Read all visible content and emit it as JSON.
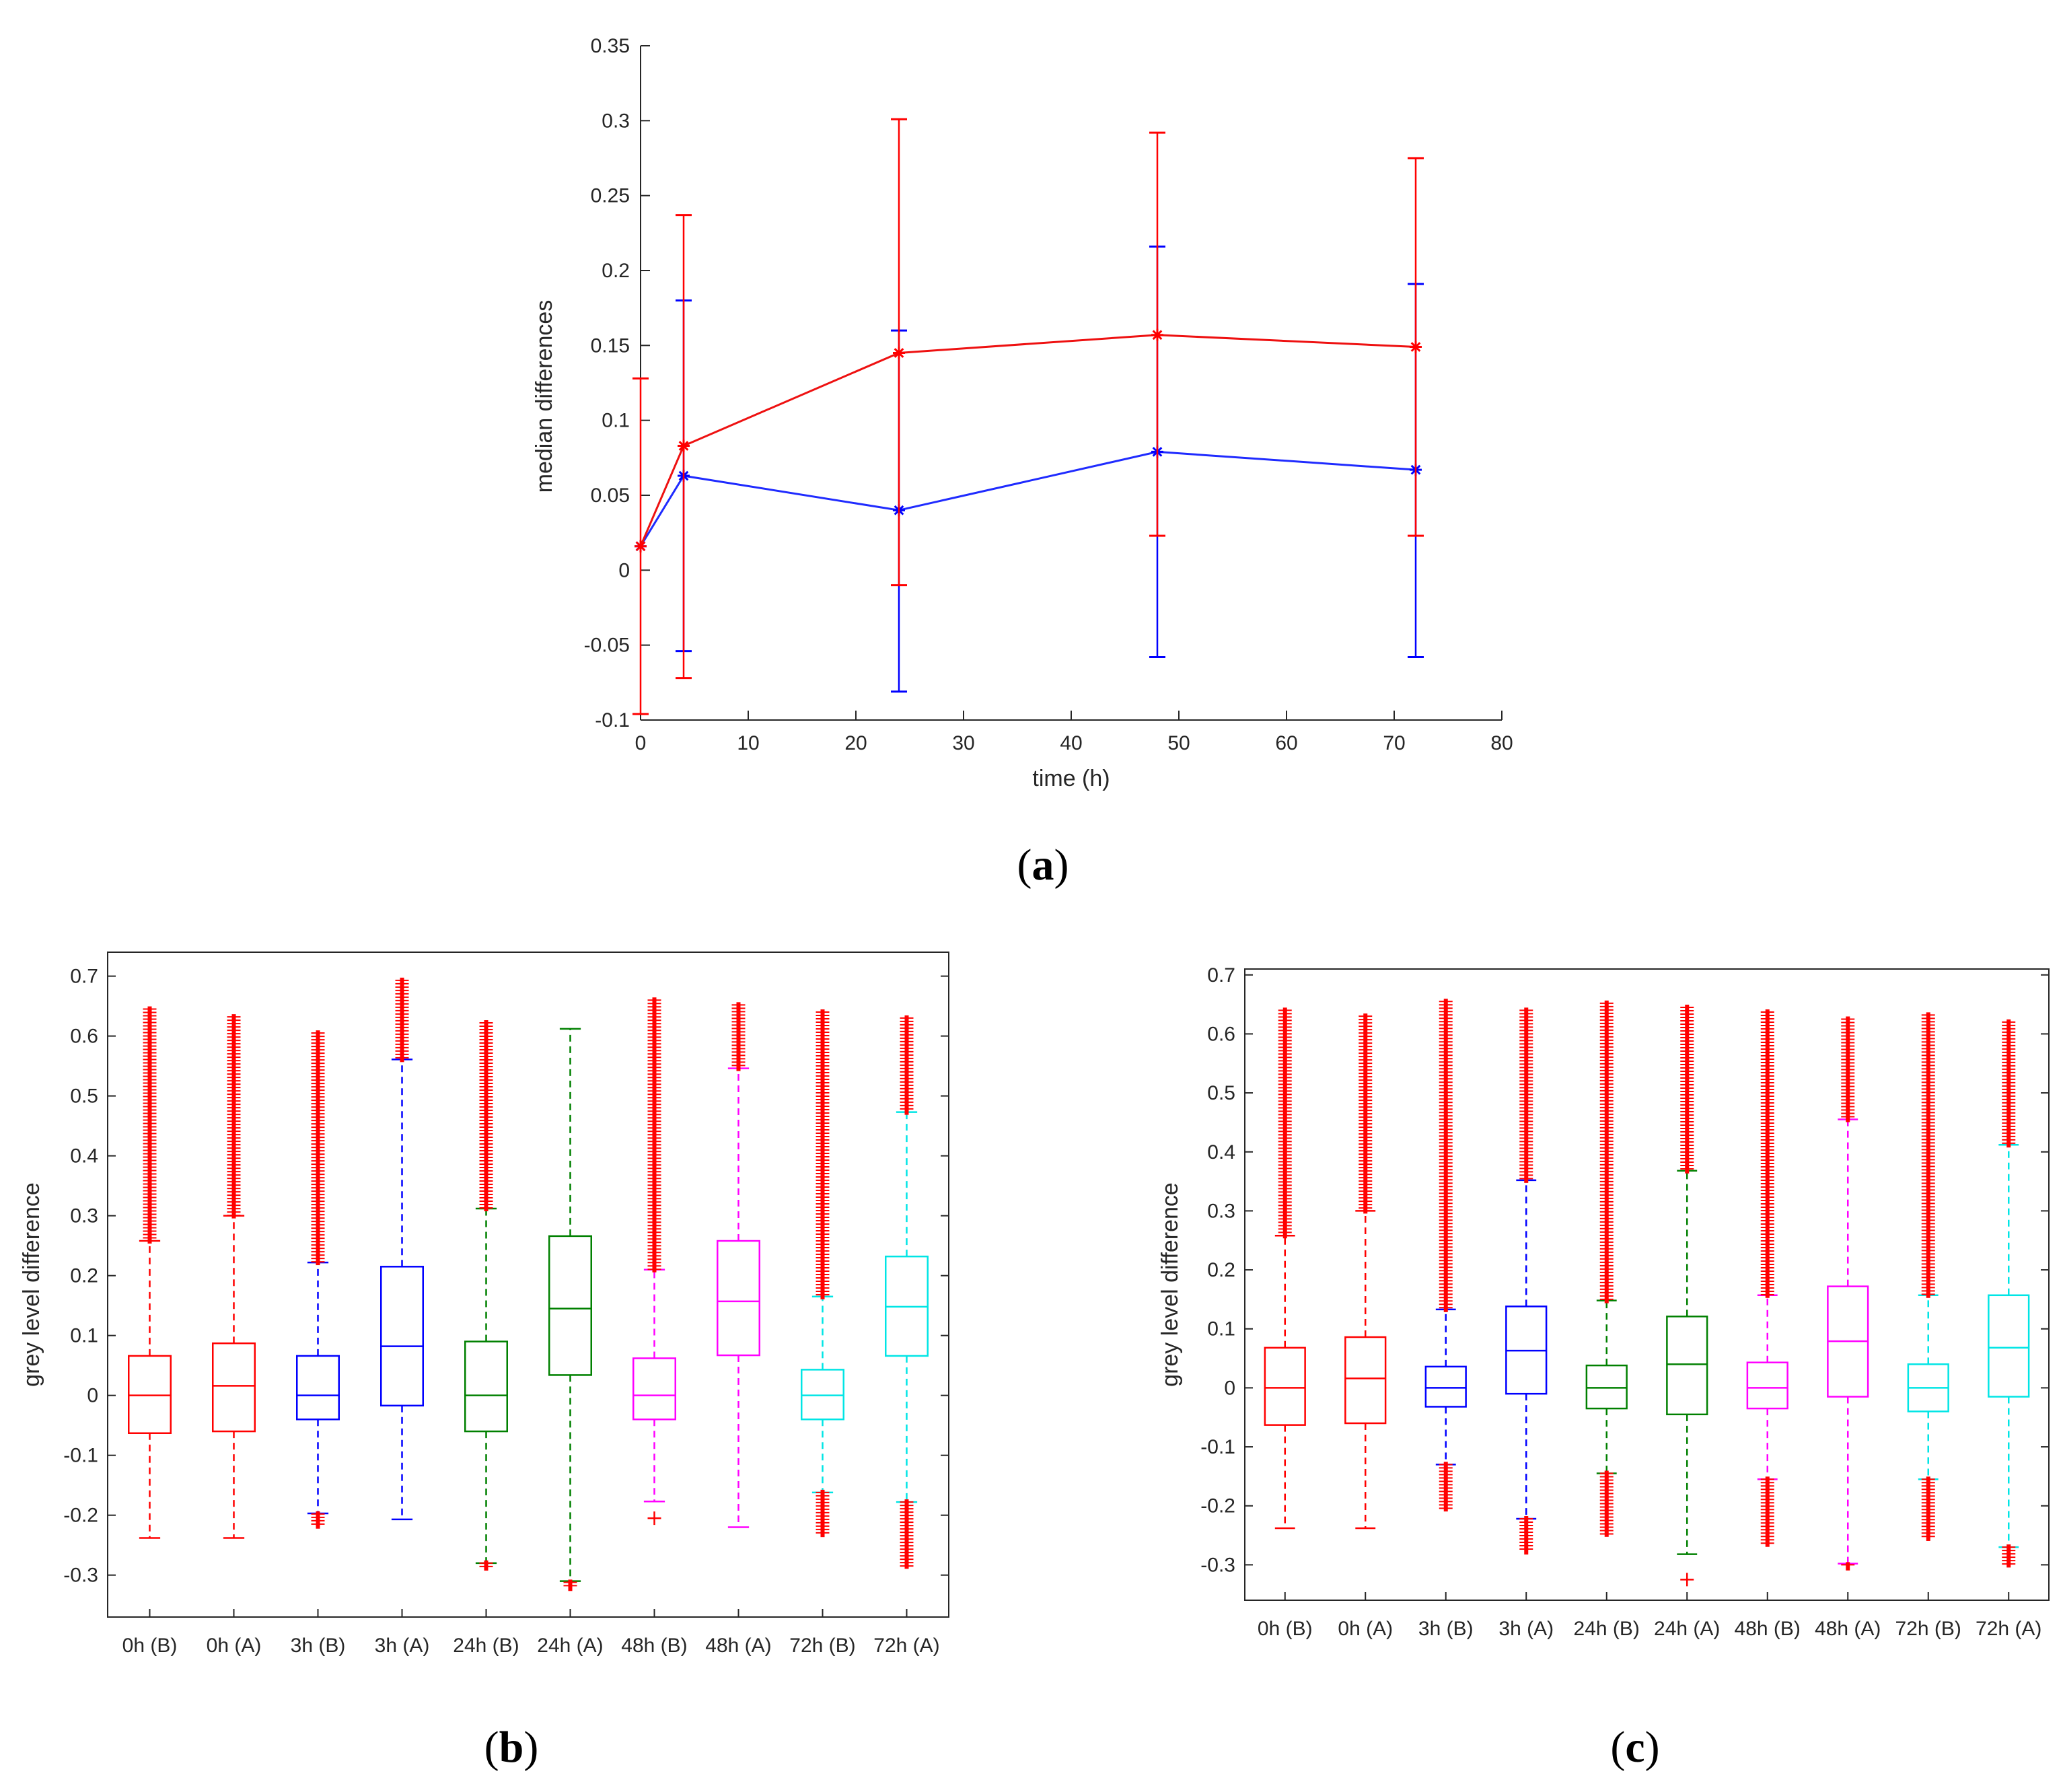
{
  "colors": {
    "red": "#ff0000",
    "blue": "#0000ff",
    "green": "#008000",
    "magenta": "#ff00ff",
    "cyan": "#00e5e5",
    "axis": "#262626",
    "neutral_line": "#1f2bff",
    "treated_line": "#ee1111"
  },
  "chart_data": [
    {
      "panel": "a",
      "caption": {
        "open": "(",
        "letter": "a",
        "close": ")"
      },
      "type": "line",
      "xlabel": "time (h)",
      "ylabel": "median differences",
      "xlim": [
        0,
        80
      ],
      "ylim": [
        -0.1,
        0.35
      ],
      "xticks": [
        0,
        10,
        20,
        30,
        40,
        50,
        60,
        70,
        80
      ],
      "xtick_labels": [
        "0",
        "10",
        "20",
        "30",
        "40",
        "50",
        "60",
        "70",
        "80"
      ],
      "yticks": [
        -0.1,
        -0.05,
        0,
        0.05,
        0.1,
        0.15,
        0.2,
        0.25,
        0.3,
        0.35
      ],
      "ytick_labels": [
        "-0.1",
        "-0.05",
        "0",
        "0.05",
        "0.1",
        "0.15",
        "0.2",
        "0.25",
        "0.3",
        "0.35"
      ],
      "series": [
        {
          "color": "blue",
          "marker": "asterisk",
          "x": [
            0,
            4,
            24,
            48,
            72
          ],
          "y": [
            0.016,
            0.063,
            0.04,
            0.079,
            0.067
          ],
          "err_low": [
            0.016,
            -0.054,
            -0.081,
            -0.058,
            -0.058
          ],
          "err_high": [
            0.016,
            0.18,
            0.16,
            0.216,
            0.191
          ]
        },
        {
          "color": "red",
          "marker": "asterisk",
          "x": [
            0,
            4,
            24,
            48,
            72
          ],
          "y": [
            0.016,
            0.083,
            0.145,
            0.157,
            0.149
          ],
          "err_low": [
            -0.096,
            -0.072,
            -0.01,
            0.023,
            0.023
          ],
          "err_high": [
            0.128,
            0.237,
            0.301,
            0.292,
            0.275
          ]
        }
      ]
    },
    {
      "panel": "b",
      "caption": {
        "open": "(",
        "letter": "b",
        "close": ")"
      },
      "type": "box",
      "ylabel": "grey level difference",
      "ylim": [
        -0.37,
        0.74
      ],
      "yticks": [
        -0.3,
        -0.2,
        -0.1,
        0,
        0.1,
        0.2,
        0.3,
        0.4,
        0.5,
        0.6,
        0.7
      ],
      "ytick_labels": [
        "-0.3",
        "-0.2",
        "-0.1",
        "0",
        "0.1",
        "0.2",
        "0.3",
        "0.4",
        "0.5",
        "0.6",
        "0.7"
      ],
      "categories": [
        "0h (B)",
        "0h (A)",
        "3h (B)",
        "3h (A)",
        "24h (B)",
        "24h (A)",
        "48h (B)",
        "48h (A)",
        "72h (B)",
        "72h (A)"
      ],
      "boxes": [
        {
          "color": "red",
          "q1": -0.063,
          "median": 0.0,
          "q3": 0.066,
          "whisker_low": -0.238,
          "whisker_high": 0.258,
          "outliers_low": [],
          "outliers_high": [
            0.258,
            0.645
          ]
        },
        {
          "color": "red",
          "q1": -0.06,
          "median": 0.016,
          "q3": 0.087,
          "whisker_low": -0.238,
          "whisker_high": 0.3,
          "outliers_low": [],
          "outliers_high": [
            0.3,
            0.632
          ]
        },
        {
          "color": "blue",
          "q1": -0.04,
          "median": 0.0,
          "q3": 0.066,
          "whisker_low": -0.197,
          "whisker_high": 0.222,
          "outliers_low": [
            -0.198,
            -0.218
          ],
          "outliers_high": [
            0.222,
            0.605
          ]
        },
        {
          "color": "blue",
          "q1": -0.017,
          "median": 0.082,
          "q3": 0.215,
          "whisker_low": -0.207,
          "whisker_high": 0.561,
          "outliers_low": [],
          "outliers_high": [
            0.561,
            0.693
          ]
        },
        {
          "color": "green",
          "q1": -0.06,
          "median": 0.0,
          "q3": 0.09,
          "whisker_low": -0.28,
          "whisker_high": 0.312,
          "outliers_low": [
            -0.28,
            -0.288
          ],
          "outliers_high": [
            0.312,
            0.622
          ]
        },
        {
          "color": "green",
          "q1": 0.034,
          "median": 0.145,
          "q3": 0.266,
          "whisker_low": -0.31,
          "whisker_high": 0.612,
          "outliers_low": [
            -0.312,
            -0.322
          ],
          "outliers_high": []
        },
        {
          "color": "magenta",
          "q1": -0.04,
          "median": 0.0,
          "q3": 0.062,
          "whisker_low": -0.177,
          "whisker_high": 0.21,
          "outliers_low": [
            -0.205,
            -0.205
          ],
          "outliers_high": [
            0.21,
            0.66
          ]
        },
        {
          "color": "magenta",
          "q1": 0.067,
          "median": 0.157,
          "q3": 0.258,
          "whisker_low": -0.22,
          "whisker_high": 0.546,
          "outliers_low": [],
          "outliers_high": [
            0.546,
            0.652
          ]
        },
        {
          "color": "cyan",
          "q1": -0.04,
          "median": 0.0,
          "q3": 0.043,
          "whisker_low": -0.162,
          "whisker_high": 0.165,
          "outliers_low": [
            -0.162,
            -0.232
          ],
          "outliers_high": [
            0.165,
            0.64
          ]
        },
        {
          "color": "cyan",
          "q1": 0.066,
          "median": 0.148,
          "q3": 0.232,
          "whisker_low": -0.178,
          "whisker_high": 0.473,
          "outliers_low": [
            -0.178,
            -0.285
          ],
          "outliers_high": [
            0.473,
            0.63
          ]
        }
      ]
    },
    {
      "panel": "c",
      "caption": {
        "open": "(",
        "letter": "c",
        "close": ")"
      },
      "type": "box",
      "ylabel": "grey level difference",
      "ylim": [
        -0.36,
        0.71
      ],
      "yticks": [
        -0.3,
        -0.2,
        -0.1,
        0,
        0.1,
        0.2,
        0.3,
        0.4,
        0.5,
        0.6,
        0.7
      ],
      "ytick_labels": [
        "-0.3",
        "-0.2",
        "-0.1",
        "0",
        "0.1",
        "0.2",
        "0.3",
        "0.4",
        "0.5",
        "0.6",
        "0.7"
      ],
      "categories": [
        "0h (B)",
        "0h (A)",
        "3h (B)",
        "3h (A)",
        "24h (B)",
        "24h (A)",
        "48h (B)",
        "48h (A)",
        "72h (B)",
        "72h (A)"
      ],
      "boxes": [
        {
          "color": "red",
          "q1": -0.063,
          "median": 0.0,
          "q3": 0.068,
          "whisker_low": -0.238,
          "whisker_high": 0.258,
          "outliers_low": [],
          "outliers_high": [
            0.258,
            0.64
          ]
        },
        {
          "color": "red",
          "q1": -0.06,
          "median": 0.016,
          "q3": 0.086,
          "whisker_low": -0.238,
          "whisker_high": 0.3,
          "outliers_low": [],
          "outliers_high": [
            0.3,
            0.63
          ]
        },
        {
          "color": "blue",
          "q1": -0.032,
          "median": 0.0,
          "q3": 0.036,
          "whisker_low": -0.13,
          "whisker_high": 0.133,
          "outliers_low": [
            -0.13,
            -0.205
          ],
          "outliers_high": [
            0.133,
            0.655
          ]
        },
        {
          "color": "blue",
          "q1": -0.01,
          "median": 0.063,
          "q3": 0.138,
          "whisker_low": -0.222,
          "whisker_high": 0.352,
          "outliers_low": [
            -0.222,
            -0.278
          ],
          "outliers_high": [
            0.352,
            0.64
          ]
        },
        {
          "color": "green",
          "q1": -0.035,
          "median": 0.0,
          "q3": 0.038,
          "whisker_low": -0.145,
          "whisker_high": 0.148,
          "outliers_low": [
            -0.145,
            -0.248
          ],
          "outliers_high": [
            0.148,
            0.652
          ]
        },
        {
          "color": "green",
          "q1": -0.045,
          "median": 0.04,
          "q3": 0.121,
          "whisker_low": -0.282,
          "whisker_high": 0.368,
          "outliers_low": [
            -0.325,
            -0.325
          ],
          "outliers_high": [
            0.368,
            0.645
          ]
        },
        {
          "color": "magenta",
          "q1": -0.035,
          "median": 0.0,
          "q3": 0.043,
          "whisker_low": -0.155,
          "whisker_high": 0.157,
          "outliers_low": [
            -0.155,
            -0.265
          ],
          "outliers_high": [
            0.157,
            0.637
          ]
        },
        {
          "color": "magenta",
          "q1": -0.015,
          "median": 0.079,
          "q3": 0.172,
          "whisker_low": -0.298,
          "whisker_high": 0.455,
          "outliers_low": [
            -0.3,
            -0.305
          ],
          "outliers_high": [
            0.455,
            0.625
          ]
        },
        {
          "color": "cyan",
          "q1": -0.04,
          "median": 0.0,
          "q3": 0.04,
          "whisker_low": -0.155,
          "whisker_high": 0.157,
          "outliers_low": [
            -0.155,
            -0.255
          ],
          "outliers_high": [
            0.157,
            0.632
          ]
        },
        {
          "color": "cyan",
          "q1": -0.015,
          "median": 0.068,
          "q3": 0.157,
          "whisker_low": -0.27,
          "whisker_high": 0.412,
          "outliers_low": [
            -0.27,
            -0.3
          ],
          "outliers_high": [
            0.412,
            0.62
          ]
        }
      ]
    }
  ]
}
